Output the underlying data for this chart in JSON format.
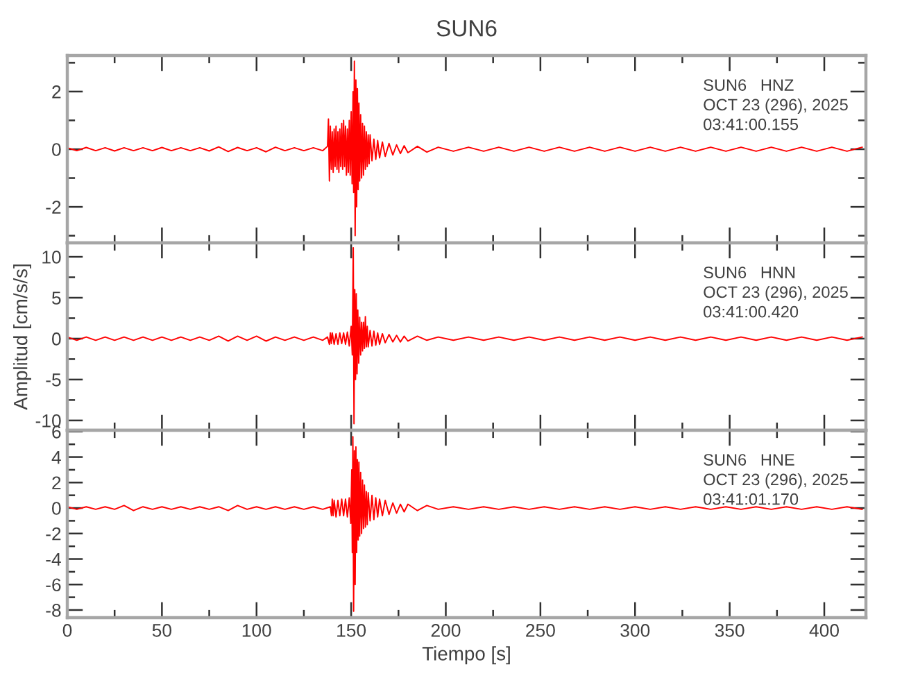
{
  "chart_data": [
    {
      "type": "line",
      "title": "SUN6",
      "annotations": [
        "SUN6   HNZ",
        "OCT 23 (296), 2025",
        "03:41:00.155"
      ],
      "x": [
        0,
        5,
        10,
        15,
        20,
        25,
        30,
        35,
        40,
        45,
        50,
        55,
        60,
        65,
        70,
        75,
        80,
        85,
        90,
        95,
        100,
        105,
        110,
        115,
        120,
        125,
        130,
        135,
        137.5,
        138,
        138.5,
        139,
        139.5,
        140,
        140.5,
        141,
        141.5,
        142,
        142.5,
        143,
        143.5,
        144,
        144.5,
        145,
        145.5,
        146,
        146.5,
        147,
        147.5,
        148,
        148.5,
        149,
        149.5,
        150,
        150.5,
        151,
        151.3,
        151.7,
        152.1,
        152.5,
        152.9,
        153.3,
        153.7,
        154.1,
        154.5,
        155,
        155.5,
        156,
        156.5,
        157,
        157.5,
        158,
        158.5,
        159,
        159.5,
        160,
        161,
        162,
        163,
        164,
        165,
        166.5,
        168,
        170,
        172,
        174,
        176,
        178,
        180,
        185,
        190,
        196,
        204,
        212,
        220,
        228,
        236,
        244,
        252,
        260,
        268,
        276,
        284,
        292,
        300,
        308,
        316,
        324,
        332,
        340,
        348,
        356,
        364,
        372,
        380,
        388,
        396,
        404,
        412,
        420
      ],
      "series": [
        {
          "color": "#ff0000",
          "values": [
            0.05,
            -0.05,
            0.06,
            -0.05,
            0.05,
            -0.06,
            0.05,
            -0.05,
            0.05,
            -0.05,
            0.06,
            -0.05,
            0.05,
            -0.05,
            0.05,
            -0.06,
            0.08,
            -0.08,
            0.06,
            -0.05,
            0.05,
            -0.09,
            0.07,
            -0.05,
            0.05,
            -0.05,
            0.05,
            -0.05,
            0.1,
            1.05,
            -1.1,
            0.8,
            -0.7,
            0.6,
            -0.8,
            0.7,
            -0.6,
            0.8,
            -0.7,
            0.6,
            -0.8,
            0.7,
            -0.6,
            0.9,
            -0.7,
            1.0,
            -0.6,
            0.8,
            -0.9,
            0.7,
            -0.8,
            1.0,
            -0.9,
            1.3,
            -1.2,
            2.0,
            -1.5,
            3.05,
            -3.0,
            2.4,
            -2.0,
            2.1,
            -1.4,
            1.6,
            -1.1,
            1.2,
            -1.0,
            0.9,
            -0.9,
            0.8,
            -0.7,
            0.6,
            -0.6,
            0.5,
            -0.5,
            0.5,
            -0.4,
            0.35,
            -0.35,
            0.3,
            -0.3,
            0.25,
            -0.25,
            0.2,
            -0.2,
            0.15,
            -0.15,
            0.12,
            -0.12,
            0.1,
            -0.1,
            0.07,
            -0.07,
            0.07,
            -0.07,
            0.07,
            -0.07,
            0.07,
            -0.07,
            0.07,
            -0.07,
            0.07,
            -0.07,
            0.07,
            -0.07,
            0.07,
            -0.07,
            0.07,
            -0.07,
            0.07,
            -0.07,
            0.07,
            -0.07,
            0.07,
            -0.07,
            0.07,
            -0.07,
            0.07,
            -0.07,
            0.07
          ]
        }
      ],
      "xlim": [
        0,
        422
      ],
      "xticks": [
        0,
        {
          "value": 25,
          "label": null
        },
        50,
        {
          "value": 75,
          "label": null
        },
        100,
        {
          "value": 125,
          "label": null
        },
        150,
        {
          "value": 175,
          "label": null
        },
        200,
        {
          "value": 225,
          "label": null
        },
        250,
        {
          "value": 275,
          "label": null
        },
        300,
        {
          "value": 325,
          "label": null
        },
        350,
        {
          "value": 375,
          "label": null
        },
        400
      ],
      "ylim": [
        -3.25,
        3.25
      ],
      "yticks": [
        {
          "value": -3,
          "label": null
        },
        -2,
        {
          "value": -1,
          "label": null
        },
        0,
        {
          "value": 1,
          "label": null
        },
        2,
        {
          "value": 3,
          "label": null
        }
      ],
      "tick_labels": "y"
    },
    {
      "type": "line",
      "ylabel": "Amplitud [cm/s/s]",
      "annotations": [
        "SUN6   HNN",
        "OCT 23 (296), 2025",
        "03:41:00.420"
      ],
      "x": [
        0,
        5,
        10,
        15,
        20,
        25,
        30,
        35,
        40,
        45,
        50,
        55,
        60,
        65,
        70,
        75,
        80,
        85,
        90,
        95,
        100,
        105,
        110,
        115,
        120,
        125,
        130,
        135,
        137.5,
        138.5,
        139,
        139.5,
        140,
        141,
        142,
        143,
        144,
        145,
        146,
        147,
        148,
        149,
        150,
        150.6,
        151.1,
        151.5,
        151.9,
        152.3,
        152.7,
        153.1,
        153.5,
        154,
        154.5,
        155,
        155.5,
        156,
        156.5,
        157,
        157.5,
        158,
        158.5,
        159,
        160,
        161,
        162,
        163,
        164,
        165,
        166.5,
        168,
        170,
        172,
        174,
        176,
        178,
        180,
        185,
        190,
        196,
        204,
        212,
        220,
        228,
        236,
        244,
        252,
        260,
        268,
        276,
        284,
        292,
        300,
        308,
        316,
        324,
        332,
        340,
        348,
        356,
        364,
        372,
        380,
        388,
        396,
        404,
        412,
        420
      ],
      "series": [
        {
          "color": "#ff0000",
          "values": [
            0.2,
            -0.2,
            0.2,
            -0.2,
            0.2,
            -0.2,
            0.2,
            -0.2,
            0.2,
            -0.2,
            0.2,
            -0.2,
            0.2,
            -0.2,
            0.2,
            -0.2,
            0.3,
            -0.3,
            0.3,
            -0.2,
            0.3,
            -0.3,
            0.2,
            -0.2,
            0.2,
            -0.2,
            0.2,
            -0.2,
            0.2,
            -0.7,
            0.7,
            -0.6,
            0.7,
            -0.7,
            0.6,
            -0.7,
            0.7,
            -0.6,
            0.7,
            -0.7,
            0.8,
            -0.9,
            1.5,
            -2.0,
            11.1,
            -10.4,
            6.0,
            -5.0,
            5.5,
            -4.3,
            3.5,
            -3.0,
            2.6,
            -2.0,
            2.0,
            -1.5,
            2.0,
            -1.2,
            2.7,
            -1.0,
            1.5,
            -1.0,
            1.0,
            -0.9,
            0.9,
            -0.8,
            0.7,
            -0.7,
            0.6,
            -0.5,
            0.5,
            -0.4,
            0.4,
            -0.4,
            0.3,
            -0.3,
            0.3,
            -0.2,
            0.2,
            -0.2,
            0.2,
            -0.2,
            0.2,
            -0.2,
            0.2,
            -0.2,
            0.2,
            -0.2,
            0.2,
            -0.2,
            0.2,
            -0.2,
            0.2,
            -0.2,
            0.2,
            -0.2,
            0.2,
            -0.2,
            0.2,
            -0.2,
            0.2,
            -0.2,
            0.2,
            -0.2,
            0.2,
            -0.2,
            0.2
          ]
        }
      ],
      "xlim": [
        0,
        422
      ],
      "xticks": [
        0,
        {
          "value": 25,
          "label": null
        },
        50,
        {
          "value": 75,
          "label": null
        },
        100,
        {
          "value": 125,
          "label": null
        },
        150,
        {
          "value": 175,
          "label": null
        },
        200,
        {
          "value": 225,
          "label": null
        },
        250,
        {
          "value": 275,
          "label": null
        },
        300,
        {
          "value": 325,
          "label": null
        },
        350,
        {
          "value": 375,
          "label": null
        },
        400
      ],
      "ylim": [
        -11.2,
        11.7
      ],
      "yticks": [
        -10,
        {
          "value": -7.5,
          "label": null
        },
        -5,
        {
          "value": -2.5,
          "label": null
        },
        0,
        {
          "value": 2.5,
          "label": null
        },
        5,
        {
          "value": 7.5,
          "label": null
        },
        10
      ],
      "tick_labels": "y"
    },
    {
      "type": "line",
      "xlabel": "Tiempo [s]",
      "annotations": [
        "SUN6   HNE",
        "OCT 23 (296), 2025",
        "03:41:01.170"
      ],
      "x": [
        0,
        5,
        10,
        15,
        20,
        25,
        30,
        35,
        40,
        45,
        50,
        55,
        60,
        65,
        70,
        75,
        80,
        85,
        90,
        95,
        100,
        105,
        110,
        115,
        120,
        125,
        130,
        135,
        139,
        139.6,
        140,
        140.5,
        141,
        142,
        143,
        144,
        145,
        146,
        147,
        148,
        149,
        149.8,
        150.3,
        150.6,
        150.9,
        151.3,
        151.7,
        152.1,
        152.5,
        152.9,
        153.3,
        153.7,
        154.1,
        154.5,
        155,
        155.5,
        156,
        156.5,
        157,
        157.5,
        158,
        158.5,
        159,
        160,
        161,
        162,
        163,
        164,
        165,
        166.5,
        168,
        170,
        172,
        174,
        176,
        178,
        180,
        185,
        190,
        196,
        204,
        212,
        220,
        228,
        236,
        244,
        252,
        260,
        268,
        276,
        284,
        292,
        300,
        308,
        316,
        324,
        332,
        340,
        348,
        356,
        364,
        372,
        380,
        388,
        396,
        404,
        412,
        420
      ],
      "series": [
        {
          "color": "#ff0000",
          "values": [
            0.1,
            -0.1,
            0.1,
            -0.1,
            0.1,
            -0.1,
            0.2,
            -0.2,
            0.1,
            -0.1,
            0.1,
            -0.1,
            0.1,
            -0.1,
            0.1,
            -0.1,
            0.1,
            -0.2,
            0.2,
            -0.1,
            0.1,
            -0.1,
            0.1,
            -0.1,
            0.1,
            -0.1,
            0.1,
            -0.1,
            0.1,
            -0.6,
            0.7,
            -0.6,
            0.6,
            -0.7,
            0.6,
            -0.6,
            0.7,
            -0.6,
            0.7,
            -0.7,
            0.8,
            -1.2,
            3.0,
            -3.5,
            5.6,
            -8.1,
            4.5,
            -6.0,
            4.8,
            -3.5,
            3.8,
            -2.5,
            3.6,
            -2.2,
            2.8,
            -2.0,
            2.2,
            -1.6,
            1.8,
            -1.5,
            1.3,
            -1.3,
            1.2,
            -1.0,
            1.0,
            -0.9,
            0.8,
            -0.7,
            0.7,
            -0.6,
            0.6,
            -0.5,
            0.4,
            -0.4,
            0.3,
            -0.3,
            0.3,
            -0.2,
            0.2,
            -0.1,
            0.1,
            -0.1,
            0.1,
            -0.1,
            0.1,
            -0.1,
            0.1,
            -0.1,
            0.1,
            -0.1,
            0.1,
            -0.1,
            0.1,
            -0.1,
            0.1,
            -0.1,
            0.1,
            -0.1,
            0.1,
            -0.1,
            0.1,
            -0.1,
            0.1,
            -0.1,
            0.1,
            -0.1,
            0.1,
            -0.1
          ]
        }
      ],
      "xlim": [
        0,
        422
      ],
      "xticks": [
        0,
        {
          "value": 25,
          "label": null
        },
        50,
        {
          "value": 75,
          "label": null
        },
        100,
        {
          "value": 125,
          "label": null
        },
        150,
        {
          "value": 175,
          "label": null
        },
        200,
        {
          "value": 225,
          "label": null
        },
        250,
        {
          "value": 275,
          "label": null
        },
        300,
        {
          "value": 325,
          "label": null
        },
        350,
        {
          "value": 375,
          "label": null
        },
        400
      ],
      "ylim": [
        -8.6,
        6.1
      ],
      "yticks": [
        -8,
        {
          "value": -7,
          "label": null
        },
        -6,
        {
          "value": -5,
          "label": null
        },
        -4,
        {
          "value": -3,
          "label": null
        },
        -2,
        {
          "value": -1,
          "label": null
        },
        0,
        {
          "value": 1,
          "label": null
        },
        2,
        {
          "value": 3,
          "label": null
        },
        4,
        {
          "value": 5,
          "label": null
        },
        6
      ]
    }
  ]
}
